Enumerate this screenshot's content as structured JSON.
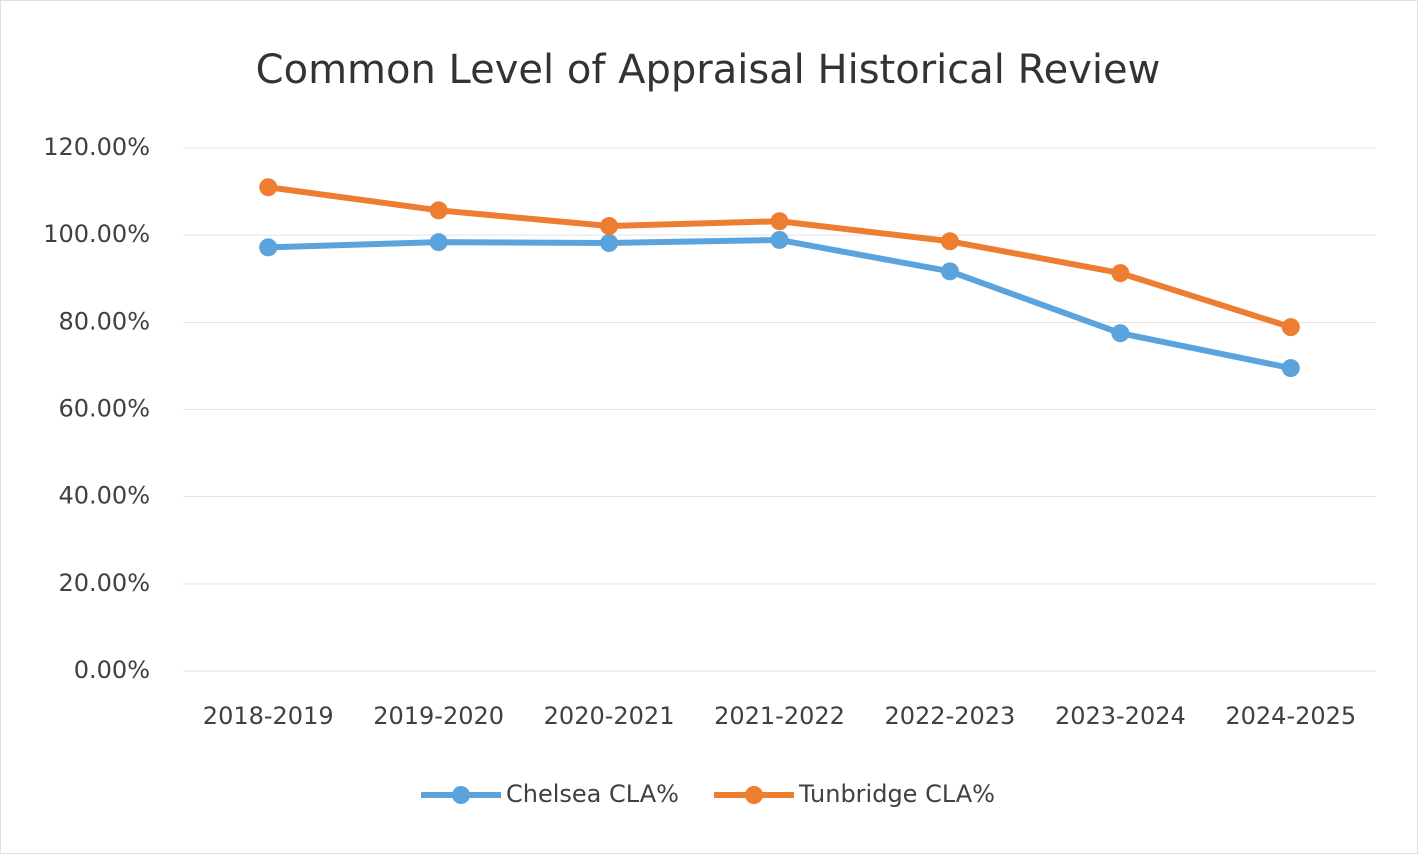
{
  "chart_data": {
    "type": "line",
    "title": "Common Level of Appraisal Historical Review",
    "categories": [
      "2018-2019",
      "2019-2020",
      "2020-2021",
      "2021-2022",
      "2022-2023",
      "2023-2024",
      "2024-2025"
    ],
    "series": [
      {
        "name": "Chelsea CLA%",
        "color": "#5ba3dc",
        "values": [
          97.2,
          98.4,
          98.2,
          98.9,
          91.7,
          77.5,
          69.5
        ]
      },
      {
        "name": "Tunbridge CLA%",
        "color": "#ed7d31",
        "values": [
          111.0,
          105.7,
          102.1,
          103.2,
          98.6,
          91.3,
          78.9
        ]
      }
    ],
    "ylim": [
      0,
      120
    ],
    "yticks": [
      {
        "value": 0,
        "label": "0.00%"
      },
      {
        "value": 20,
        "label": "20.00%"
      },
      {
        "value": 40,
        "label": "40.00%"
      },
      {
        "value": 60,
        "label": "60.00%"
      },
      {
        "value": 80,
        "label": "80.00%"
      },
      {
        "value": 100,
        "label": "100.00%"
      },
      {
        "value": 120,
        "label": "120.00%"
      }
    ],
    "grid": true,
    "legend": "bottom"
  }
}
